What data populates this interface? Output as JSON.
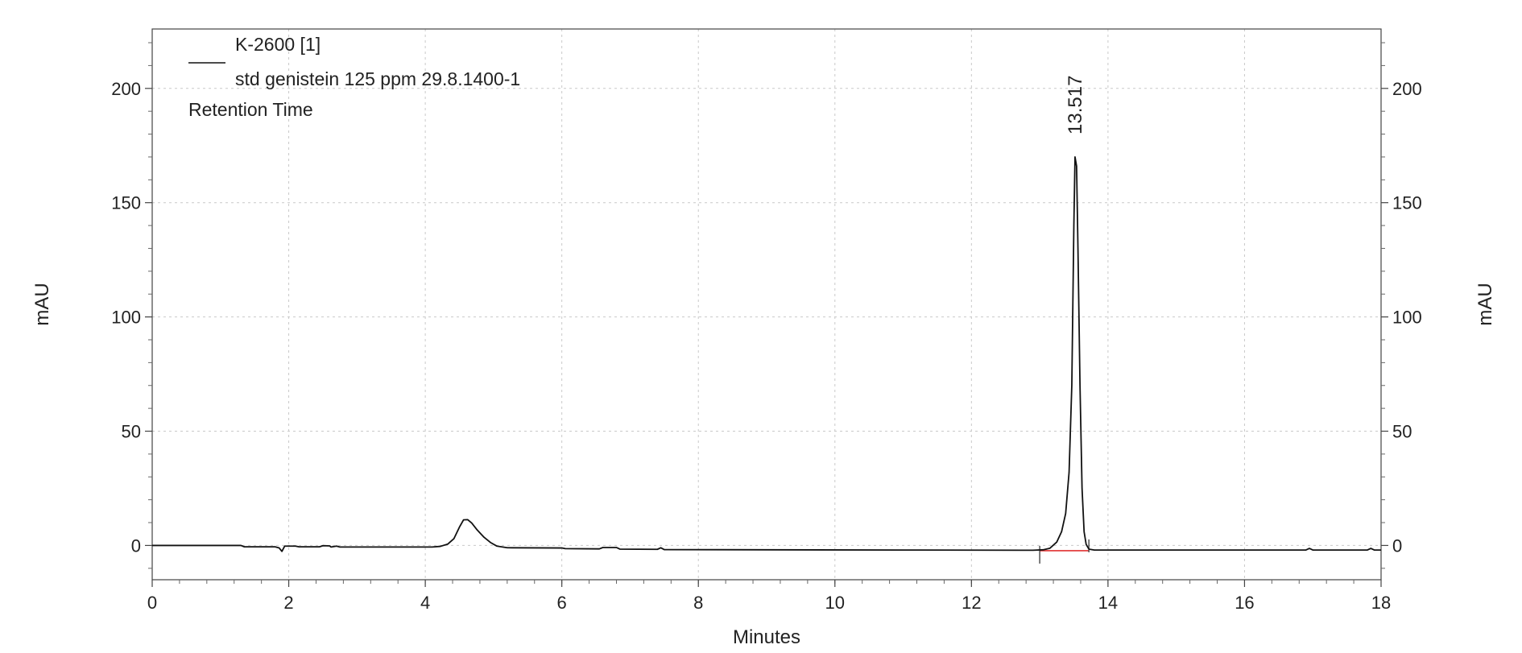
{
  "chart_data": {
    "type": "line",
    "xlabel": "Minutes",
    "ylabel_left": "mAU",
    "ylabel_right": "mAU",
    "xlim": [
      0,
      18
    ],
    "ylim": [
      -15,
      226
    ],
    "x_ticks": [
      0,
      2,
      4,
      6,
      8,
      10,
      12,
      14,
      16,
      18
    ],
    "y_ticks": [
      0,
      50,
      100,
      150,
      200
    ],
    "grid": true,
    "legend_position": "top-left",
    "legend": {
      "series_name": "K-2600 [1]",
      "sample": "std genistein 125 ppm 29.8.1400-1",
      "label_type": "Retention Time"
    },
    "annotations": [
      {
        "text": "13.517",
        "x": 13.517,
        "y": 170
      }
    ],
    "integration": {
      "baseline_color": "#e03030",
      "start_x": 13.0,
      "end_x": 13.72,
      "start_y": -2.3,
      "end_y": -2.3
    },
    "series": [
      {
        "name": "K-2600 [1]",
        "color": "#111111",
        "points": [
          [
            0,
            0.0
          ],
          [
            1.3,
            0.0
          ],
          [
            1.35,
            -0.6
          ],
          [
            1.8,
            -0.6
          ],
          [
            1.86,
            -1.1
          ],
          [
            1.9,
            -2.6
          ],
          [
            1.94,
            -0.3
          ],
          [
            2.1,
            -0.3
          ],
          [
            2.15,
            -0.6
          ],
          [
            2.45,
            -0.6
          ],
          [
            2.5,
            -0.1
          ],
          [
            2.6,
            -0.2
          ],
          [
            2.62,
            -0.7
          ],
          [
            2.7,
            -0.3
          ],
          [
            2.75,
            -0.7
          ],
          [
            3.6,
            -0.7
          ],
          [
            4.1,
            -0.7
          ],
          [
            4.22,
            -0.4
          ],
          [
            4.33,
            0.6
          ],
          [
            4.42,
            3.0
          ],
          [
            4.5,
            8.0
          ],
          [
            4.56,
            11.2
          ],
          [
            4.62,
            11.3
          ],
          [
            4.68,
            9.8
          ],
          [
            4.76,
            6.8
          ],
          [
            4.86,
            3.6
          ],
          [
            4.96,
            1.2
          ],
          [
            5.05,
            -0.3
          ],
          [
            5.2,
            -1.0
          ],
          [
            6.0,
            -1.1
          ],
          [
            6.05,
            -1.4
          ],
          [
            6.55,
            -1.5
          ],
          [
            6.6,
            -0.9
          ],
          [
            6.8,
            -0.9
          ],
          [
            6.85,
            -1.6
          ],
          [
            7.4,
            -1.7
          ],
          [
            7.45,
            -1.0
          ],
          [
            7.5,
            -1.8
          ],
          [
            9.0,
            -1.9
          ],
          [
            11.0,
            -2.0
          ],
          [
            12.9,
            -2.1
          ],
          [
            13.05,
            -1.9
          ],
          [
            13.15,
            -1.2
          ],
          [
            13.25,
            1.5
          ],
          [
            13.32,
            6.0
          ],
          [
            13.38,
            14.0
          ],
          [
            13.43,
            32.0
          ],
          [
            13.47,
            70.0
          ],
          [
            13.5,
            140.0
          ],
          [
            13.517,
            170.0
          ],
          [
            13.54,
            166.0
          ],
          [
            13.56,
            130.0
          ],
          [
            13.59,
            70.0
          ],
          [
            13.62,
            25.0
          ],
          [
            13.65,
            6.0
          ],
          [
            13.68,
            0.5
          ],
          [
            13.72,
            -1.6
          ],
          [
            13.8,
            -2.0
          ],
          [
            14.5,
            -2.0
          ],
          [
            15.5,
            -2.0
          ],
          [
            16.9,
            -2.0
          ],
          [
            16.95,
            -1.3
          ],
          [
            17.0,
            -2.0
          ],
          [
            17.8,
            -2.0
          ],
          [
            17.85,
            -1.3
          ],
          [
            17.9,
            -2.0
          ],
          [
            18.0,
            -2.0
          ]
        ]
      }
    ]
  }
}
